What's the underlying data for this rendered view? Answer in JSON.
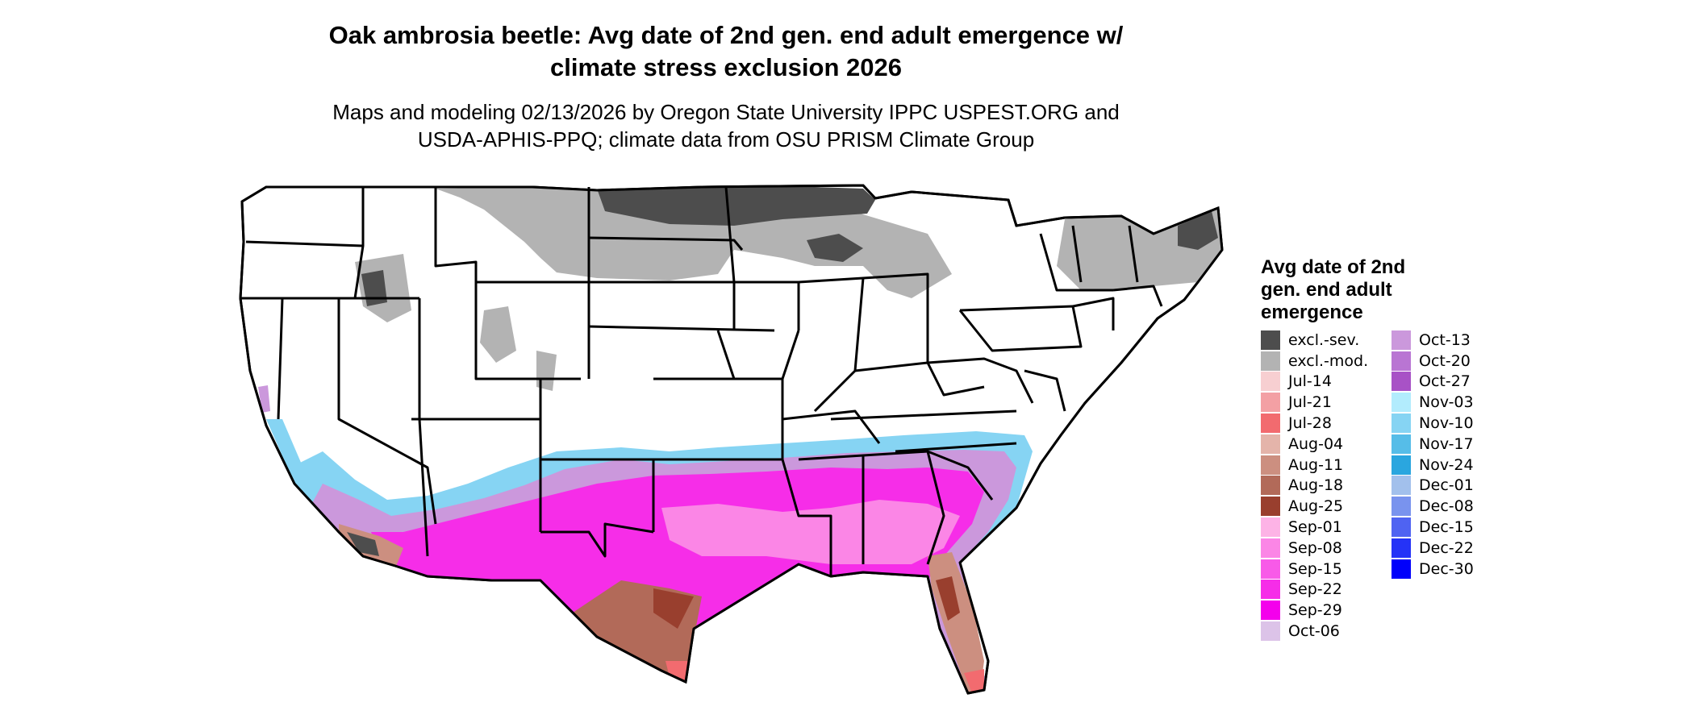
{
  "title": "Oak ambrosia beetle: Avg date of 2nd gen. end adult emergence w/ climate stress exclusion 2026",
  "title_lines": [
    "Oak ambrosia beetle: Avg date of 2nd gen. end adult emergence w/",
    "climate stress exclusion 2026"
  ],
  "subtitle_lines": [
    "Maps and modeling 02/13/2026 by Oregon State University IPPC USPEST.ORG and",
    "USDA-APHIS-PPQ; climate data from OSU PRISM Climate Group"
  ],
  "legend": {
    "title_lines": [
      "Avg date of 2nd",
      "gen. end adult",
      "emergence"
    ],
    "columns": [
      [
        {
          "label": "excl.-sev.",
          "color": "#4d4d4d"
        },
        {
          "label": "excl.-mod.",
          "color": "#b3b3b3"
        },
        {
          "label": "Jul-14",
          "color": "#f7cfd1"
        },
        {
          "label": "Jul-21",
          "color": "#f3a0a4"
        },
        {
          "label": "Jul-28",
          "color": "#f26b6f"
        },
        {
          "label": "Aug-04",
          "color": "#e4b4aa"
        },
        {
          "label": "Aug-11",
          "color": "#cc8f80"
        },
        {
          "label": "Aug-18",
          "color": "#b26a59"
        },
        {
          "label": "Aug-25",
          "color": "#993f2e"
        },
        {
          "label": "Sep-01",
          "color": "#fdb3e6"
        },
        {
          "label": "Sep-08",
          "color": "#fb86e6"
        },
        {
          "label": "Sep-15",
          "color": "#f85ae8"
        },
        {
          "label": "Sep-22",
          "color": "#f62de8"
        },
        {
          "label": "Sep-29",
          "color": "#f400ec"
        },
        {
          "label": "Oct-06",
          "color": "#dcc3e8"
        }
      ],
      [
        {
          "label": "Oct-13",
          "color": "#cb98dc"
        },
        {
          "label": "Oct-20",
          "color": "#b975d3"
        },
        {
          "label": "Oct-27",
          "color": "#a852c6"
        },
        {
          "label": "Nov-03",
          "color": "#b2ecfd"
        },
        {
          "label": "Nov-10",
          "color": "#86d4f3"
        },
        {
          "label": "Nov-17",
          "color": "#56bde8"
        },
        {
          "label": "Nov-24",
          "color": "#2aa6df"
        },
        {
          "label": "Dec-01",
          "color": "#a2c0ec"
        },
        {
          "label": "Dec-08",
          "color": "#7993ee"
        },
        {
          "label": "Dec-15",
          "color": "#4f63f2"
        },
        {
          "label": "Dec-22",
          "color": "#2533f7"
        },
        {
          "label": "Dec-30",
          "color": "#0000fb"
        }
      ]
    ]
  }
}
